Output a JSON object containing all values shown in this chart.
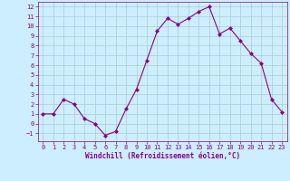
{
  "x": [
    0,
    1,
    2,
    3,
    4,
    5,
    6,
    7,
    8,
    9,
    10,
    11,
    12,
    13,
    14,
    15,
    16,
    17,
    18,
    19,
    20,
    21,
    22,
    23
  ],
  "y": [
    1.0,
    1.0,
    2.5,
    2.0,
    0.5,
    0.0,
    -1.2,
    -0.8,
    1.5,
    3.5,
    6.5,
    9.5,
    10.8,
    10.2,
    10.8,
    11.5,
    12.0,
    9.2,
    9.8,
    8.5,
    7.2,
    6.2,
    2.5,
    1.2
  ],
  "line_color": "#880088",
  "marker": "D",
  "marker_size": 2.0,
  "bg_color": "#cceeff",
  "grid_color": "#aacccc",
  "xlabel": "Windchill (Refroidissement éolien,°C)",
  "xlabel_color": "#880088",
  "tick_color": "#880088",
  "spine_color": "#880088",
  "ylim": [
    -1.8,
    12.5
  ],
  "xlim": [
    -0.5,
    23.5
  ],
  "yticks": [
    -1,
    0,
    1,
    2,
    3,
    4,
    5,
    6,
    7,
    8,
    9,
    10,
    11,
    12
  ],
  "xticks": [
    0,
    1,
    2,
    3,
    4,
    5,
    6,
    7,
    8,
    9,
    10,
    11,
    12,
    13,
    14,
    15,
    16,
    17,
    18,
    19,
    20,
    21,
    22,
    23
  ],
  "tick_fontsize": 5.0,
  "xlabel_fontsize": 5.5,
  "line_width": 0.8
}
